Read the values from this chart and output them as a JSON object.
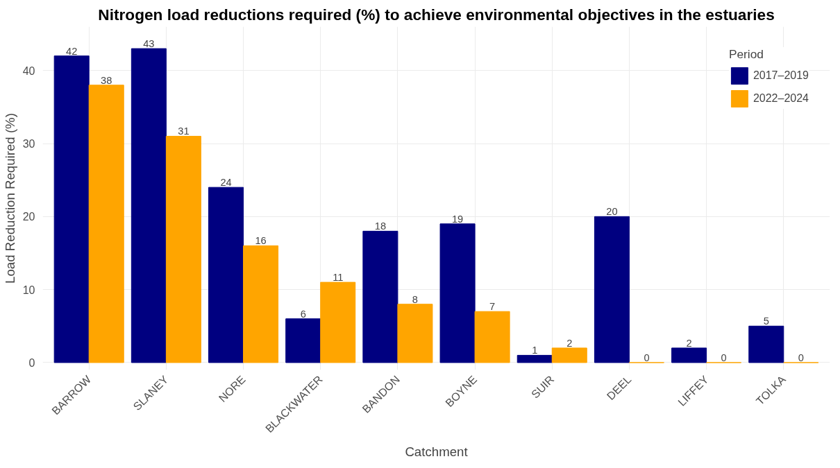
{
  "chart_data": {
    "type": "bar",
    "title": "Nitrogen load reductions required (%) to achieve environmental objectives in the estuaries",
    "xlabel": "Catchment",
    "ylabel": "Load Reduction Required (%)",
    "legend_title": "Period",
    "categories": [
      "BARROW",
      "SLANEY",
      "NORE",
      "BLACKWATER",
      "BANDON",
      "BOYNE",
      "SUIR",
      "DEEL",
      "LIFFEY",
      "TOLKA"
    ],
    "series": [
      {
        "name": "2017–2019",
        "color": "#000080",
        "values": [
          42,
          43,
          24,
          6,
          18,
          19,
          1,
          20,
          2,
          5
        ]
      },
      {
        "name": "2022–2024",
        "color": "#ffa500",
        "values": [
          38,
          31,
          16,
          11,
          8,
          7,
          2,
          0,
          0,
          0
        ]
      }
    ],
    "ylim": [
      -1,
      46
    ],
    "yticks": [
      0,
      10,
      20,
      30,
      40
    ],
    "grid": true,
    "legend": "top right",
    "data_labels": true
  }
}
